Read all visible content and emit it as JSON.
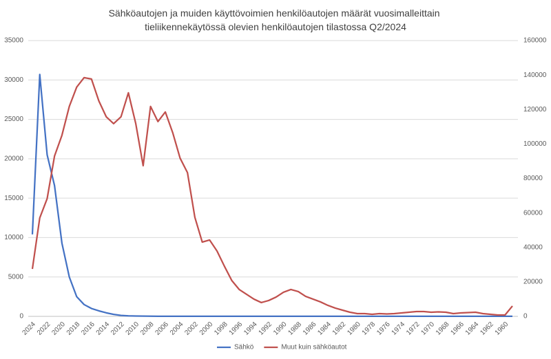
{
  "chart_data": {
    "type": "line",
    "title": "Sähköautojen ja muiden käyttövoimien henkilöautojen määrät vuosimalleittain tieliikennekäytössä olevien henkilöautojen tilastossa Q2/2024",
    "categories": [
      "2024",
      null,
      "2022",
      null,
      "2020",
      null,
      "2018",
      null,
      "2016",
      null,
      "2014",
      null,
      "2012",
      null,
      "2010",
      null,
      "2008",
      null,
      "2006",
      null,
      "2004",
      null,
      "2002",
      null,
      "2000",
      null,
      "1998",
      null,
      "1996",
      null,
      "1994",
      null,
      "1992",
      null,
      "1990",
      null,
      "1988",
      null,
      "1986",
      null,
      "1984",
      null,
      "1982",
      null,
      "1980",
      null,
      "1978",
      null,
      "1976",
      null,
      "1974",
      null,
      "1972",
      null,
      "1970",
      null,
      "1968",
      null,
      "1966",
      null,
      "1964",
      null,
      "1962",
      null,
      "1960",
      null
    ],
    "series": [
      {
        "name": "Sähkö",
        "color": "#4472c4",
        "values": [
          10400,
          30700,
          20500,
          16600,
          9300,
          5000,
          2500,
          1500,
          1000,
          700,
          450,
          250,
          120,
          60,
          40,
          30,
          20,
          15,
          15,
          10,
          10,
          10,
          10,
          10,
          10,
          10,
          10,
          10,
          10,
          10,
          10,
          10,
          10,
          10,
          10,
          10,
          10,
          10,
          10,
          10,
          10,
          10,
          10,
          10,
          10,
          10,
          10,
          10,
          10,
          10,
          10,
          10,
          10,
          10,
          10,
          10,
          10,
          10,
          10,
          10,
          10,
          10,
          10,
          10,
          10,
          10
        ]
      },
      {
        "name": "Muut kuin sähköautot",
        "color": "#c0504d",
        "axis": "y2",
        "values": [
          27500,
          57100,
          68300,
          93000,
          105000,
          121800,
          133000,
          138500,
          137700,
          125000,
          115800,
          111800,
          115800,
          129700,
          111800,
          87400,
          121800,
          113000,
          118600,
          106600,
          91800,
          83400,
          57500,
          43100,
          44300,
          37900,
          29100,
          20800,
          15600,
          12800,
          10000,
          8000,
          9200,
          11200,
          14000,
          15600,
          14400,
          11600,
          10000,
          8400,
          6400,
          4800,
          3600,
          2400,
          1600,
          1600,
          1200,
          1600,
          1400,
          1600,
          2000,
          2400,
          2800,
          2800,
          2400,
          2600,
          2400,
          1600,
          2000,
          2200,
          2400,
          1600,
          1200,
          800,
          800,
          6000
        ]
      }
    ],
    "ylim": [
      0,
      35000
    ],
    "yticks": [
      0,
      5000,
      10000,
      15000,
      20000,
      25000,
      30000,
      35000
    ],
    "y2lim": [
      0,
      160000
    ],
    "y2ticks": [
      0,
      20000,
      40000,
      60000,
      80000,
      100000,
      120000,
      140000,
      160000
    ],
    "grid": true,
    "legend": "bottom"
  }
}
